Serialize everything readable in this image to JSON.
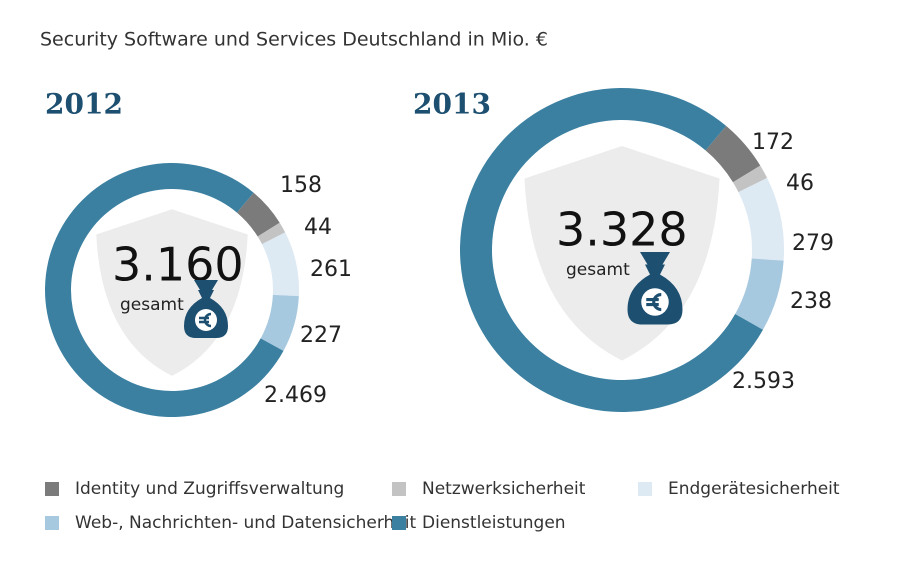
{
  "header": {
    "title": "Security Software und Services Deutschland in Mio. €"
  },
  "chart_data": [
    {
      "type": "donut",
      "title": "2012",
      "total": {
        "value": 3160,
        "label": "3.160"
      },
      "total_caption": "gesamt",
      "categories": [
        "Identity und Zugriffsverwaltung",
        "Netzwerksicherheit",
        "Endgerätesicherheit",
        "Web-, Nachrichten- und Datensicherheit",
        "Dienstleistungen"
      ],
      "values": [
        158,
        44,
        261,
        227,
        2469
      ],
      "value_labels": [
        "158",
        "44",
        "261",
        "227",
        "2.469"
      ],
      "colors": [
        "#7b7b7b",
        "#c3c3c3",
        "#dde9f3",
        "#a7c9df",
        "#3b80a1"
      ]
    },
    {
      "type": "donut",
      "title": "2013",
      "total": {
        "value": 3328,
        "label": "3.328"
      },
      "total_caption": "gesamt",
      "categories": [
        "Identity und Zugriffsverwaltung",
        "Netzwerksicherheit",
        "Endgerätesicherheit",
        "Web-, Nachrichten- und Datensicherheit",
        "Dienstleistungen"
      ],
      "values": [
        172,
        46,
        279,
        238,
        2593
      ],
      "value_labels": [
        "172",
        "46",
        "279",
        "238",
        "2.593"
      ],
      "colors": [
        "#7b7b7b",
        "#c3c3c3",
        "#dde9f3",
        "#a7c9df",
        "#3b80a1"
      ]
    }
  ]
}
